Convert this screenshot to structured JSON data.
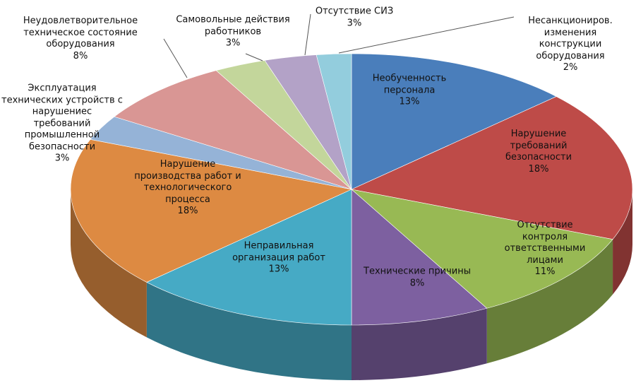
{
  "chart_data": {
    "type": "pie",
    "categories": [
      "Необученность\nперсонала",
      "Нарушение требований\nбезопасности",
      "Отсутствие контроля\nответственными\nлицами",
      "Технические причины",
      "Неправильная\nорганизация работ",
      "Нарушение\nпроизводства работ и\nтехнологического\nпроцесса",
      "Эксплуатация\nтехнических устройств с\nнарушениес\nтребований\nпромышленной\nбезопасности",
      "Неудовлетворительное\nтехническое состояние\nоборудования",
      "Самовольные действия\nработников",
      "Отсутствие СИЗ",
      "Несанкциониров.\nизменения\nконструкции\nоборудования"
    ],
    "values": [
      13,
      18,
      11,
      8,
      13,
      18,
      3,
      8,
      3,
      3,
      2
    ],
    "value_labels": [
      "13%",
      "18%",
      "11%",
      "8%",
      "13%",
      "18%",
      "3%",
      "8%",
      "3%",
      "3%",
      "2%"
    ],
    "colors": [
      "#4a7ebb",
      "#be4b48",
      "#98b954",
      "#7d60a0",
      "#46aac5",
      "#dd8a42",
      "#95b3d7",
      "#d99694",
      "#c3d69b",
      "#b3a2c7",
      "#93cddd"
    ]
  }
}
